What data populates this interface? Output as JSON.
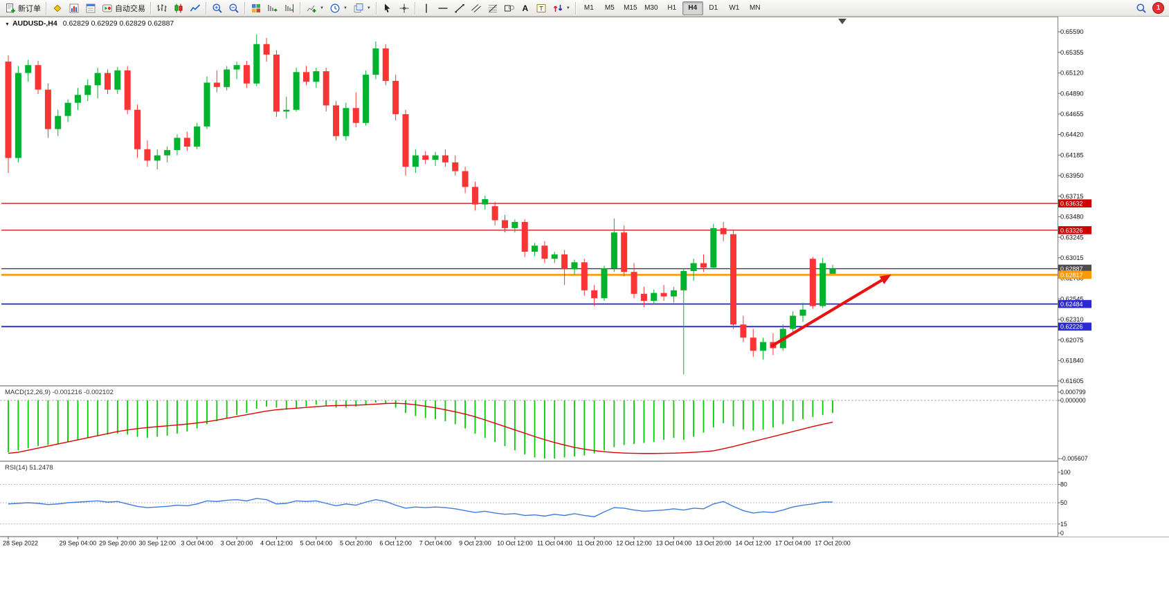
{
  "toolbar": {
    "items": [
      {
        "n": "new-order-button",
        "i": "new-order",
        "l": "新订单"
      },
      {
        "s": 1
      },
      {
        "n": "metaeditor-button",
        "i": "metaeditor"
      },
      {
        "n": "market-watch-button",
        "i": "market-watch"
      },
      {
        "n": "data-window-button",
        "i": "data-window"
      },
      {
        "n": "autotrading-button",
        "i": "autotrading",
        "l": "自动交易"
      },
      {
        "s": 1
      },
      {
        "n": "bar-chart-button",
        "i": "bar-chart"
      },
      {
        "n": "candlestick-chart-button",
        "i": "candle-chart"
      },
      {
        "n": "line-chart-button",
        "i": "line-chart"
      },
      {
        "s": 1
      },
      {
        "n": "zoom-in-button",
        "i": "zoom-in"
      },
      {
        "n": "zoom-out-button",
        "i": "zoom-out"
      },
      {
        "s": 1
      },
      {
        "n": "tile-windows-button",
        "i": "tile-windows"
      },
      {
        "n": "auto-scroll-button",
        "i": "auto-scroll"
      },
      {
        "n": "chart-shift-button",
        "i": "chart-shift"
      },
      {
        "s": 1
      },
      {
        "n": "indicators-button",
        "i": "indicators",
        "c": 1
      },
      {
        "n": "periods-button",
        "i": "periods",
        "c": 1
      },
      {
        "n": "templates-button",
        "i": "templates",
        "c": 1
      },
      {
        "s": 1
      },
      {
        "n": "cursor-button",
        "i": "cursor"
      },
      {
        "n": "crosshair-button",
        "i": "crosshair"
      },
      {
        "s": 1
      },
      {
        "n": "vertical-line-button",
        "i": "vline"
      },
      {
        "n": "horizontal-line-button",
        "i": "hline"
      },
      {
        "n": "trendline-button",
        "i": "trendline"
      },
      {
        "n": "channel-button",
        "i": "channel"
      },
      {
        "n": "fibonacci-button",
        "i": "fibonacci"
      },
      {
        "n": "shapes-button",
        "i": "shapes"
      },
      {
        "n": "text-button",
        "l": "A",
        "glyph": 1
      },
      {
        "n": "text-label-button",
        "i": "text-label"
      },
      {
        "n": "arrows-button",
        "i": "arrows",
        "c": 1
      },
      {
        "s": 1
      }
    ],
    "timeframes": [
      "M1",
      "M5",
      "M15",
      "M30",
      "H1",
      "H4",
      "D1",
      "W1",
      "MN"
    ],
    "active_timeframe": "H4",
    "text_label_glyph": "T",
    "badge_count": "1"
  },
  "chart": {
    "symbol_label": "AUDUSD-,H4",
    "ohlc_label": "0.62829 0.62929 0.62829 0.62887",
    "colors": {
      "bull": "#00B22D",
      "bear": "#F93434",
      "macd_hist": "#00CC00",
      "macd_signal": "#E00000",
      "rsi_line": "#3E7BDB",
      "arrow": "#E81212",
      "scale_text": "#111111"
    }
  },
  "macd": {
    "label": "MACD(12,26,9) -0.001216 -0.002102"
  },
  "rsi": {
    "label": "RSI(14) 51.2478"
  },
  "chart_data": {
    "type": "candlestick",
    "symbol": "AUDUSD",
    "timeframe": "H4",
    "title": "AUDUSD-,H4",
    "ohlc_current": {
      "open": 0.62829,
      "high": 0.62929,
      "low": 0.62829,
      "close": 0.62887
    },
    "ohlc": [
      [
        0.6525,
        0.6532,
        0.6398,
        0.6415
      ],
      [
        0.6415,
        0.652,
        0.641,
        0.6512
      ],
      [
        0.6512,
        0.6527,
        0.6502,
        0.6521
      ],
      [
        0.6521,
        0.6526,
        0.6488,
        0.6493
      ],
      [
        0.6493,
        0.65,
        0.6438,
        0.6448
      ],
      [
        0.6448,
        0.647,
        0.644,
        0.6463
      ],
      [
        0.6463,
        0.6482,
        0.6456,
        0.6478
      ],
      [
        0.6478,
        0.6495,
        0.647,
        0.6487
      ],
      [
        0.6487,
        0.6505,
        0.648,
        0.6498
      ],
      [
        0.6498,
        0.6518,
        0.6483,
        0.6512
      ],
      [
        0.6512,
        0.6516,
        0.6488,
        0.6493
      ],
      [
        0.6493,
        0.6519,
        0.6488,
        0.6515
      ],
      [
        0.6515,
        0.652,
        0.6465,
        0.647
      ],
      [
        0.647,
        0.6476,
        0.6415,
        0.6425
      ],
      [
        0.6425,
        0.6435,
        0.6405,
        0.6412
      ],
      [
        0.6412,
        0.6425,
        0.6402,
        0.6418
      ],
      [
        0.6418,
        0.6428,
        0.641,
        0.6424
      ],
      [
        0.6424,
        0.6442,
        0.6418,
        0.6438
      ],
      [
        0.6438,
        0.6445,
        0.6423,
        0.6428
      ],
      [
        0.6428,
        0.6455,
        0.6425,
        0.6451
      ],
      [
        0.6451,
        0.6508,
        0.6448,
        0.6501
      ],
      [
        0.6501,
        0.6515,
        0.649,
        0.6496
      ],
      [
        0.6496,
        0.652,
        0.6492,
        0.6516
      ],
      [
        0.6516,
        0.6525,
        0.6505,
        0.6521
      ],
      [
        0.6521,
        0.6526,
        0.6495,
        0.65
      ],
      [
        0.65,
        0.6556,
        0.6497,
        0.6545
      ],
      [
        0.6545,
        0.6552,
        0.6525,
        0.6533
      ],
      [
        0.6533,
        0.6538,
        0.6462,
        0.6468
      ],
      [
        0.6468,
        0.6485,
        0.646,
        0.647
      ],
      [
        0.647,
        0.6518,
        0.6468,
        0.6513
      ],
      [
        0.6513,
        0.652,
        0.6498,
        0.6502
      ],
      [
        0.6502,
        0.6518,
        0.6495,
        0.6514
      ],
      [
        0.6514,
        0.6518,
        0.6468,
        0.6475
      ],
      [
        0.6475,
        0.648,
        0.6435,
        0.644
      ],
      [
        0.644,
        0.6478,
        0.6435,
        0.6472
      ],
      [
        0.6472,
        0.649,
        0.645,
        0.6455
      ],
      [
        0.6455,
        0.6515,
        0.6452,
        0.651
      ],
      [
        0.651,
        0.6548,
        0.6505,
        0.654
      ],
      [
        0.654,
        0.6545,
        0.6498,
        0.6503
      ],
      [
        0.6503,
        0.651,
        0.6458,
        0.6465
      ],
      [
        0.6465,
        0.647,
        0.6395,
        0.6405
      ],
      [
        0.6405,
        0.6425,
        0.6398,
        0.6418
      ],
      [
        0.6418,
        0.6423,
        0.6408,
        0.6413
      ],
      [
        0.6413,
        0.6422,
        0.6406,
        0.6418
      ],
      [
        0.6418,
        0.6425,
        0.6405,
        0.641
      ],
      [
        0.641,
        0.6418,
        0.6395,
        0.64
      ],
      [
        0.64,
        0.6405,
        0.6375,
        0.6382
      ],
      [
        0.6382,
        0.6388,
        0.6355,
        0.6362
      ],
      [
        0.6362,
        0.6372,
        0.6356,
        0.6368
      ],
      [
        0.636,
        0.6365,
        0.6338,
        0.6344
      ],
      [
        0.6344,
        0.635,
        0.633,
        0.6335
      ],
      [
        0.6335,
        0.6345,
        0.633,
        0.6342
      ],
      [
        0.6342,
        0.6345,
        0.6302,
        0.6308
      ],
      [
        0.6308,
        0.6318,
        0.6303,
        0.6315
      ],
      [
        0.6315,
        0.632,
        0.6295,
        0.63
      ],
      [
        0.63,
        0.6308,
        0.6295,
        0.6305
      ],
      [
        0.6305,
        0.631,
        0.627,
        0.6288
      ],
      [
        0.6288,
        0.6299,
        0.6282,
        0.6296
      ],
      [
        0.6296,
        0.63,
        0.6258,
        0.6264
      ],
      [
        0.6264,
        0.627,
        0.6246,
        0.6255
      ],
      [
        0.6255,
        0.6292,
        0.6252,
        0.6289
      ],
      [
        0.6289,
        0.6346,
        0.6285,
        0.633
      ],
      [
        0.633,
        0.6338,
        0.628,
        0.6285
      ],
      [
        0.6285,
        0.6295,
        0.6255,
        0.626
      ],
      [
        0.626,
        0.6268,
        0.6245,
        0.6252
      ],
      [
        0.6252,
        0.6265,
        0.6248,
        0.6261
      ],
      [
        0.6261,
        0.627,
        0.6252,
        0.6257
      ],
      [
        0.6257,
        0.6268,
        0.625,
        0.6264
      ],
      [
        0.6264,
        0.6289,
        0.6168,
        0.6286
      ],
      [
        0.6286,
        0.63,
        0.6275,
        0.6295
      ],
      [
        0.6295,
        0.6305,
        0.6285,
        0.629
      ],
      [
        0.629,
        0.634,
        0.6288,
        0.6335
      ],
      [
        0.6335,
        0.6342,
        0.632,
        0.6328
      ],
      [
        0.6328,
        0.6332,
        0.622,
        0.6225
      ],
      [
        0.6225,
        0.6235,
        0.6205,
        0.621
      ],
      [
        0.621,
        0.622,
        0.6188,
        0.6195
      ],
      [
        0.6195,
        0.621,
        0.6185,
        0.6205
      ],
      [
        0.6205,
        0.6215,
        0.619,
        0.6198
      ],
      [
        0.6198,
        0.6225,
        0.6195,
        0.622
      ],
      [
        0.622,
        0.624,
        0.6215,
        0.6235
      ],
      [
        0.6235,
        0.625,
        0.6228,
        0.6242
      ],
      [
        0.63,
        0.6302,
        0.6243,
        0.6246
      ],
      [
        0.6246,
        0.6301,
        0.6244,
        0.6295
      ],
      [
        0.62829,
        0.62929,
        0.62829,
        0.62887
      ]
    ],
    "macd_histogram": [
      -0.005,
      -0.0048,
      -0.0046,
      -0.0044,
      -0.0043,
      -0.0042,
      -0.004,
      -0.0038,
      -0.0036,
      -0.0034,
      -0.0033,
      -0.0032,
      -0.0033,
      -0.0035,
      -0.0036,
      -0.0035,
      -0.0034,
      -0.0032,
      -0.003,
      -0.0027,
      -0.0023,
      -0.002,
      -0.0017,
      -0.0014,
      -0.0012,
      -0.0008,
      -0.0006,
      -0.0007,
      -0.0009,
      -0.0008,
      -0.0006,
      -0.0004,
      -0.0005,
      -0.0007,
      -0.0007,
      -0.0006,
      -0.0004,
      -0.0002,
      -0.0003,
      -0.0007,
      -0.0012,
      -0.0015,
      -0.0017,
      -0.0018,
      -0.002,
      -0.0023,
      -0.0027,
      -0.0032,
      -0.0036,
      -0.004,
      -0.0044,
      -0.0048,
      -0.0052,
      -0.0055,
      -0.0056,
      -0.0056,
      -0.0055,
      -0.0054,
      -0.0053,
      -0.0051,
      -0.0048,
      -0.0045,
      -0.0043,
      -0.0042,
      -0.0041,
      -0.004,
      -0.0038,
      -0.0036,
      -0.0038,
      -0.0035,
      -0.0031,
      -0.0026,
      -0.0022,
      -0.0025,
      -0.0028,
      -0.0029,
      -0.0028,
      -0.0026,
      -0.0023,
      -0.002,
      -0.0018,
      -0.0016,
      -0.0014,
      -0.001216
    ],
    "macd_signal": [
      -0.0051,
      -0.005,
      -0.0048,
      -0.0046,
      -0.0044,
      -0.0042,
      -0.004,
      -0.0038,
      -0.0036,
      -0.0034,
      -0.0032,
      -0.003,
      -0.00285,
      -0.00272,
      -0.00262,
      -0.00253,
      -0.00245,
      -0.00237,
      -0.00228,
      -0.00218,
      -0.00205,
      -0.0019,
      -0.00172,
      -0.00155,
      -0.00138,
      -0.0012,
      -0.00103,
      -0.0009,
      -0.00082,
      -0.00075,
      -0.00068,
      -0.0006,
      -0.00054,
      -0.0005,
      -0.00048,
      -0.00046,
      -0.00042,
      -0.00036,
      -0.0003,
      -0.00028,
      -0.00032,
      -0.00042,
      -0.00056,
      -0.00072,
      -0.0009,
      -0.0011,
      -0.00132,
      -0.00158,
      -0.00188,
      -0.0022,
      -0.00252,
      -0.00284,
      -0.00316,
      -0.00348,
      -0.00378,
      -0.00406,
      -0.0043,
      -0.00452,
      -0.0047,
      -0.00484,
      -0.00494,
      -0.00502,
      -0.00507,
      -0.0051,
      -0.00511,
      -0.00511,
      -0.0051,
      -0.00508,
      -0.00505,
      -0.005,
      -0.00494,
      -0.00486,
      -0.00466,
      -0.00444,
      -0.0042,
      -0.00396,
      -0.00372,
      -0.00348,
      -0.00324,
      -0.003,
      -0.00276,
      -0.00252,
      -0.0023,
      -0.0021
    ],
    "rsi_values": [
      48,
      49,
      50,
      49,
      47,
      48,
      50,
      51,
      52,
      53,
      51,
      52,
      48,
      44,
      42,
      43,
      44,
      46,
      45,
      48,
      53,
      52,
      54,
      55,
      53,
      57,
      55,
      48,
      49,
      53,
      52,
      53,
      49,
      45,
      48,
      46,
      51,
      55,
      52,
      46,
      41,
      43,
      42,
      43,
      42,
      40,
      37,
      34,
      36,
      33,
      31,
      32,
      29,
      30,
      28,
      31,
      29,
      32,
      29,
      27,
      35,
      42,
      41,
      38,
      36,
      37,
      38,
      40,
      38,
      41,
      40,
      48,
      52,
      44,
      37,
      33,
      35,
      34,
      38,
      43,
      46,
      48,
      51,
      51.2
    ],
    "x_tick_labels": [
      {
        "bar": 0,
        "label": "28 Sep 2022"
      },
      {
        "bar": 7,
        "label": "29 Sep 04:00"
      },
      {
        "bar": 11,
        "label": "29 Sep 20:00"
      },
      {
        "bar": 15,
        "label": "30 Sep 12:00"
      },
      {
        "bar": 19,
        "label": "3 Oct 04:00"
      },
      {
        "bar": 23,
        "label": "3 Oct 20:00"
      },
      {
        "bar": 27,
        "label": "4 Oct 12:00"
      },
      {
        "bar": 31,
        "label": "5 Oct 04:00"
      },
      {
        "bar": 35,
        "label": "5 Oct 20:00"
      },
      {
        "bar": 39,
        "label": "6 Oct 12:00"
      },
      {
        "bar": 43,
        "label": "7 Oct 04:00"
      },
      {
        "bar": 47,
        "label": "9 Oct 23:00"
      },
      {
        "bar": 51,
        "label": "10 Oct 12:00"
      },
      {
        "bar": 55,
        "label": "11 Oct 04:00"
      },
      {
        "bar": 59,
        "label": "11 Oct 20:00"
      },
      {
        "bar": 63,
        "label": "12 Oct 12:00"
      },
      {
        "bar": 67,
        "label": "13 Oct 04:00"
      },
      {
        "bar": 71,
        "label": "13 Oct 20:00"
      },
      {
        "bar": 75,
        "label": "14 Oct 12:00"
      },
      {
        "bar": 79,
        "label": "17 Oct 04:00"
      },
      {
        "bar": 83,
        "label": "17 Oct 20:00"
      }
    ],
    "price_axis_ticks": [
      "0.65590",
      "0.65355",
      "0.65120",
      "0.64890",
      "0.64655",
      "0.64420",
      "0.64185",
      "0.63950",
      "0.63715",
      "0.63480",
      "0.63245",
      "0.63015",
      "0.62780",
      "0.62545",
      "0.62310",
      "0.62075",
      "0.61840",
      "0.61605"
    ],
    "price_axis_range": [
      0.61605,
      0.6559
    ],
    "macd_axis_labels": [
      {
        "v": 0.000799,
        "t": "0.000799"
      },
      {
        "v": 0,
        "t": "0.000000"
      },
      {
        "v": -0.005607,
        "t": "-0.005607"
      }
    ],
    "rsi_axis_labels": [
      {
        "v": 100,
        "t": "100"
      },
      {
        "v": 80,
        "t": "80"
      },
      {
        "v": 50,
        "t": "50"
      },
      {
        "v": 15,
        "t": "15"
      },
      {
        "v": 0,
        "t": "0"
      }
    ],
    "rsi_level_lines": [
      80,
      50,
      15
    ],
    "horizontal_levels": [
      {
        "name": "resistance-line-1",
        "price": 0.63632,
        "label": "0.63632",
        "color": "#D40000",
        "badge": "#CC0000",
        "width": 1.3
      },
      {
        "name": "resistance-line-2",
        "price": 0.63326,
        "label": "0.63326",
        "color": "#D40000",
        "badge": "#CC0000",
        "width": 1.3
      },
      {
        "name": "current-price-line",
        "price": 0.62887,
        "label": "0.62887",
        "color": "#3C3C3C",
        "badge": "#4D4D4D",
        "width": 1.4
      },
      {
        "name": "bid-price-line",
        "price": 0.62817,
        "label": "0.62817",
        "color": "#FF9900",
        "badge": "#FF9900",
        "width": 2.6
      },
      {
        "name": "support-line-1",
        "price": 0.62484,
        "label": "0.62484",
        "color": "#2222CC",
        "badge": "#2A2AD0",
        "width": 1.8
      },
      {
        "name": "support-line-2",
        "price": 0.62226,
        "label": "0.62226",
        "color": "#2222CC",
        "badge": "#2A2AD0",
        "width": 1.8
      }
    ],
    "trend_arrow": {
      "from_bar": 76.8,
      "from_price": 0.62,
      "to_bar": 88.9,
      "to_price": 0.6282
    }
  }
}
